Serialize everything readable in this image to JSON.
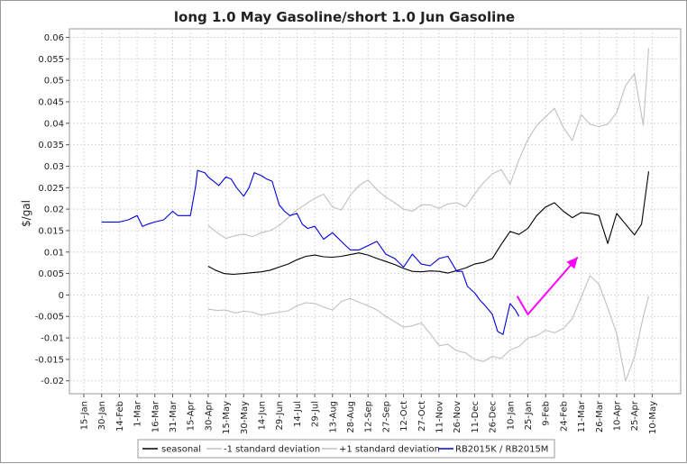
{
  "chart_data": {
    "type": "line",
    "title": "long 1.0 May Gasoline/short 1.0 Jun Gasoline",
    "ylabel": "$/gal",
    "xlabel": "",
    "ylim": [
      -0.023,
      0.062
    ],
    "yticks": [
      -0.02,
      -0.015,
      -0.01,
      -0.005,
      0,
      0.005,
      0.01,
      0.015,
      0.02,
      0.025,
      0.03,
      0.035,
      0.04,
      0.045,
      0.05,
      0.055,
      0.06
    ],
    "ytick_labels": [
      "-0.02",
      "-0.015",
      "-0.01",
      "-0.005",
      "0",
      "0.005",
      "0.01",
      "0.015",
      "0.02",
      "0.025",
      "0.03",
      "0.035",
      "0.04",
      "0.045",
      "0.05",
      "0.055",
      "0.06"
    ],
    "x_categories": [
      "15-Jan",
      "30-Jan",
      "14-Feb",
      "1-Mar",
      "16-Mar",
      "31-Mar",
      "15-Apr",
      "30-Apr",
      "15-May",
      "30-May",
      "14-Jun",
      "29-Jun",
      "14-Jul",
      "29-Jul",
      "13-Aug",
      "28-Aug",
      "12-Sep",
      "27-Sep",
      "12-Oct",
      "27-Oct",
      "11-Nov",
      "26-Nov",
      "11-Dec",
      "26-Dec",
      "10-Jan",
      "25-Jan",
      "9-Feb",
      "24-Feb",
      "11-Mar",
      "26-Mar",
      "10-Apr",
      "25-Apr",
      "10-May"
    ],
    "grid": true,
    "legend_position": "bottom",
    "series": [
      {
        "name": "seasonal",
        "color": "#000000",
        "x": [
          7,
          7.4,
          7.9,
          8.4,
          9,
          9.5,
          10,
          10.5,
          11,
          11.5,
          12,
          12.5,
          13,
          13.5,
          14,
          14.5,
          15,
          15.5,
          16,
          16.5,
          17,
          17.5,
          18,
          18.5,
          19,
          19.5,
          20,
          20.5,
          21,
          21.5,
          22,
          22.5,
          23,
          23.5,
          24,
          24.5,
          25,
          25.5,
          26,
          26.5,
          27,
          27.5,
          28,
          28.5,
          29,
          29.5,
          30,
          30.5,
          31,
          31.4,
          31.8
        ],
        "y": [
          0.0067,
          0.0058,
          0.005,
          0.0048,
          0.005,
          0.0052,
          0.0054,
          0.0058,
          0.0065,
          0.0072,
          0.0082,
          0.009,
          0.0093,
          0.0089,
          0.0088,
          0.009,
          0.0094,
          0.0098,
          0.0093,
          0.0085,
          0.0078,
          0.0071,
          0.0062,
          0.0055,
          0.0054,
          0.0056,
          0.0055,
          0.0051,
          0.0057,
          0.0063,
          0.0072,
          0.0076,
          0.0085,
          0.0118,
          0.0148,
          0.0141,
          0.0155,
          0.0185,
          0.0205,
          0.0215,
          0.0195,
          0.018,
          0.0192,
          0.019,
          0.0185,
          0.012,
          0.019,
          0.0165,
          0.014,
          0.0165,
          0.0288
        ]
      },
      {
        "name": "-1 standard deviation",
        "color": "#c0c0c0",
        "x": [
          7,
          7.5,
          8,
          8.5,
          9,
          9.5,
          10,
          10.5,
          11,
          11.5,
          12,
          12.5,
          13,
          13.5,
          14,
          14.5,
          15,
          15.5,
          16,
          16.5,
          17,
          17.5,
          18,
          18.5,
          19,
          19.5,
          20,
          20.5,
          21,
          21.5,
          22,
          22.5,
          23,
          23.5,
          24,
          24.5,
          25,
          25.5,
          26,
          26.5,
          27,
          27.5,
          28,
          28.5,
          29,
          29.5,
          30,
          30.5,
          31,
          31.5,
          31.8
        ],
        "y": [
          -0.0033,
          -0.0036,
          -0.0035,
          -0.0042,
          -0.0038,
          -0.004,
          -0.0047,
          -0.0043,
          -0.004,
          -0.0037,
          -0.0025,
          -0.0018,
          -0.002,
          -0.0028,
          -0.0035,
          -0.0015,
          -0.0008,
          -0.0017,
          -0.0025,
          -0.0035,
          -0.005,
          -0.0062,
          -0.0075,
          -0.0072,
          -0.0065,
          -0.009,
          -0.0118,
          -0.0115,
          -0.013,
          -0.0135,
          -0.015,
          -0.0155,
          -0.0143,
          -0.0148,
          -0.0128,
          -0.012,
          -0.01,
          -0.0095,
          -0.0082,
          -0.0088,
          -0.0078,
          -0.0055,
          -0.0005,
          0.0045,
          0.0025,
          -0.003,
          -0.009,
          -0.02,
          -0.0145,
          -0.005,
          -0.0003
        ]
      },
      {
        "name": "+1 standard deviation",
        "color": "#c0c0c0",
        "x": [
          7,
          7.5,
          8,
          8.5,
          9,
          9.5,
          10,
          10.5,
          11,
          11.5,
          12,
          12.5,
          13,
          13.5,
          14,
          14.5,
          15,
          15.5,
          16,
          16.5,
          17,
          17.5,
          18,
          18.5,
          19,
          19.5,
          20,
          20.5,
          21,
          21.5,
          22,
          22.5,
          23,
          23.5,
          24,
          24.5,
          25,
          25.5,
          26,
          26.5,
          27,
          27.5,
          28,
          28.5,
          29,
          29.5,
          30,
          30.5,
          31,
          31.5,
          31.8
        ],
        "y": [
          0.0162,
          0.0145,
          0.0132,
          0.0138,
          0.0142,
          0.0136,
          0.0145,
          0.015,
          0.0162,
          0.018,
          0.0198,
          0.0212,
          0.0225,
          0.0235,
          0.0205,
          0.0198,
          0.0232,
          0.0255,
          0.0268,
          0.0245,
          0.0228,
          0.0215,
          0.02,
          0.0195,
          0.021,
          0.021,
          0.0202,
          0.0212,
          0.0215,
          0.0205,
          0.0235,
          0.0262,
          0.0282,
          0.0292,
          0.0258,
          0.0315,
          0.0362,
          0.0395,
          0.0415,
          0.0435,
          0.039,
          0.036,
          0.042,
          0.0398,
          0.0392,
          0.0398,
          0.0425,
          0.0488,
          0.0515,
          0.0395,
          0.0575
        ]
      },
      {
        "name": "RB2015K / RB2015M",
        "color": "#0000dd",
        "x": [
          1,
          1.5,
          2,
          2.5,
          3,
          3.3,
          3.6,
          4,
          4.5,
          5,
          5.3,
          5.6,
          6,
          6.3,
          6.4,
          6.8,
          7,
          7.3,
          7.6,
          8,
          8.3,
          8.6,
          9,
          9.3,
          9.6,
          10,
          10.3,
          10.6,
          11,
          11.3,
          11.6,
          12,
          12.3,
          12.6,
          13,
          13.5,
          14,
          14.5,
          15,
          15.5,
          16,
          16.5,
          17,
          17.5,
          18,
          18.5,
          19,
          19.5,
          20,
          20.5,
          21,
          21.3,
          21.6,
          22,
          22.3,
          22.6,
          23,
          23.3,
          23.6,
          24,
          24.3,
          24.5
        ],
        "y": [
          0.017,
          0.017,
          0.017,
          0.0175,
          0.0185,
          0.016,
          0.0165,
          0.017,
          0.0175,
          0.0195,
          0.0185,
          0.0185,
          0.0185,
          0.0255,
          0.029,
          0.0285,
          0.0275,
          0.0265,
          0.0255,
          0.0275,
          0.027,
          0.025,
          0.023,
          0.025,
          0.0285,
          0.0278,
          0.027,
          0.0265,
          0.021,
          0.0195,
          0.0185,
          0.019,
          0.0165,
          0.0155,
          0.016,
          0.013,
          0.0145,
          0.0125,
          0.0105,
          0.0105,
          0.0115,
          0.0125,
          0.0095,
          0.0085,
          0.0065,
          0.0095,
          0.0072,
          0.0068,
          0.0085,
          0.009,
          0.0055,
          0.0055,
          0.002,
          0.0005,
          -0.0012,
          -0.0025,
          -0.0045,
          -0.0085,
          -0.0092,
          -0.002,
          -0.0035,
          -0.005
        ]
      }
    ],
    "annotation": {
      "type": "arrow",
      "color": "#ff00ff",
      "points": [
        [
          24.4,
          -0.0003
        ],
        [
          25,
          -0.0045
        ],
        [
          27.8,
          0.0088
        ]
      ]
    }
  }
}
